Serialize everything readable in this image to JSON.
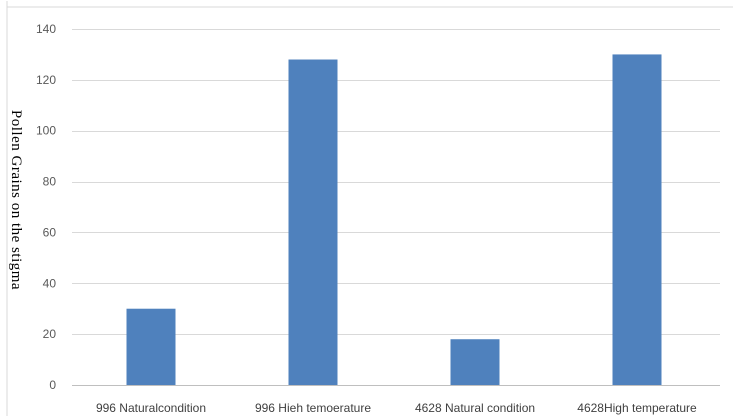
{
  "chart_data": {
    "type": "bar",
    "categories": [
      "996 Naturalcondition",
      "996 Hieh temoerature",
      "4628 Natural condition",
      "4628High temperature"
    ],
    "values": [
      30,
      128,
      18,
      130
    ],
    "title": "",
    "xlabel": "",
    "ylabel": "Pollen Grains on the stigma",
    "ylim": [
      0,
      140
    ],
    "yticks": [
      "0",
      "20",
      "40",
      "60",
      "80",
      "100",
      "120",
      "140"
    ],
    "grid": true,
    "legend": "none",
    "colors": {
      "bar": "#4f81bd",
      "grid": "#d9d9d9",
      "axis": "#bfbfbf"
    }
  }
}
